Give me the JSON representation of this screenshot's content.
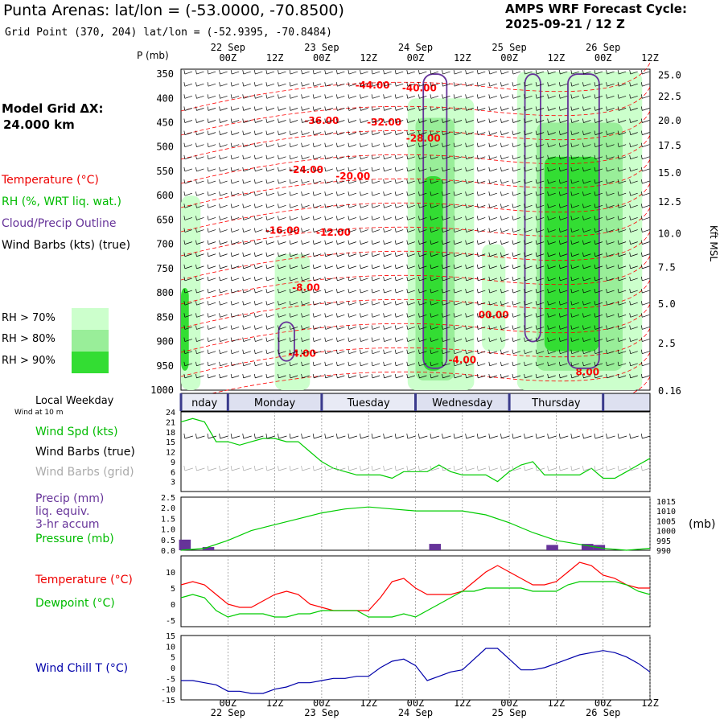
{
  "header": {
    "title": "Punta Arenas:  lat/lon = (-53.0000, -70.8500)",
    "subtitle": "Grid Point (370, 204) lat/lon = (-52.9395, -70.8484)",
    "cycle_line1": "AMPS WRF Forecast Cycle:",
    "cycle_line2": "2025-09-21 / 12  Z",
    "grid_line1": "Model Grid ΔX:",
    "grid_line2": " 24.000 km"
  },
  "legend": {
    "temperature": "Temperature (°C)",
    "rh": "RH (%, WRT liq. wat.)",
    "cloud": "Cloud/Precip Outline",
    "barbs": "Wind Barbs (kts) (true)",
    "rh70": "RH > 70%",
    "rh80": "RH > 80%",
    "rh90": "RH > 90%",
    "p_label": "P (mb)",
    "kft_label": "Kft MSL",
    "weekday_label": "Local Weekday",
    "wind10m_label": "Wind at 10 m",
    "wind_spd": "Wind Spd (kts)",
    "wind_barbs_true": "Wind Barbs (true)",
    "wind_barbs_grid": "Wind Barbs (grid)",
    "precip1": "Precip (mm)",
    "precip2": "liq. equiv.",
    "precip3": "3-hr accum",
    "pressure": "Pressure (mb)",
    "pressure_unit": "(mb)",
    "temp2": "Temperature (°C)",
    "dewpoint": "Dewpoint (°C)",
    "windchill": "Wind Chill T (°C)"
  },
  "colors": {
    "temp": "#ff0000",
    "rh70": "#ccffcc",
    "rh80": "#99ee99",
    "rh90": "#33dd33",
    "cloud": "#663399",
    "wind": "#00cc00",
    "precip": "#663399",
    "windchill": "#0000aa",
    "band_dark": "#3a3a8c",
    "band_light": "#dde0f0"
  },
  "chart_data": {
    "time_top_labels": [
      {
        "t": 12,
        "date": "22 Sep",
        "hour": "00Z"
      },
      {
        "t": 24,
        "date": "",
        "hour": "12Z"
      },
      {
        "t": 36,
        "date": "23 Sep",
        "hour": "00Z"
      },
      {
        "t": 48,
        "date": "",
        "hour": "12Z"
      },
      {
        "t": 60,
        "date": "24 Sep",
        "hour": "00Z"
      },
      {
        "t": 72,
        "date": "",
        "hour": "12Z"
      },
      {
        "t": 84,
        "date": "25 Sep",
        "hour": "00Z"
      },
      {
        "t": 96,
        "date": "",
        "hour": "12Z"
      },
      {
        "t": 108,
        "date": "26 Sep",
        "hour": "00Z"
      },
      {
        "t": 120,
        "date": "",
        "hour": "12Z"
      }
    ],
    "time_range": [
      0,
      120
    ],
    "cross_section": {
      "type": "heatmap",
      "pressure_levels": [
        "350",
        "400",
        "450",
        "500",
        "550",
        "600",
        "650",
        "700",
        "750",
        "800",
        "850",
        "900",
        "950",
        "1000"
      ],
      "pressure_range": [
        340,
        1000
      ],
      "height_labels": [
        {
          "label": "25.0",
          "p": 352
        },
        {
          "label": "22.5",
          "p": 396
        },
        {
          "label": "20.0",
          "p": 446
        },
        {
          "label": "17.5",
          "p": 497
        },
        {
          "label": "15.0",
          "p": 553
        },
        {
          "label": "12.5",
          "p": 613
        },
        {
          "label": "10.0",
          "p": 678
        },
        {
          "label": "7.5",
          "p": 748
        },
        {
          "label": "5.0",
          "p": 823
        },
        {
          "label": "2.5",
          "p": 904
        },
        {
          "label": "0.16",
          "p": 1002
        }
      ],
      "temperature_labels": [
        {
          "label": "-44.00",
          "t": 49,
          "p": 373
        },
        {
          "label": "-40.00",
          "t": 61,
          "p": 379
        },
        {
          "label": "-36.00",
          "t": 36,
          "p": 446
        },
        {
          "label": "-32.00",
          "t": 52,
          "p": 449
        },
        {
          "label": "-28.00",
          "t": 62,
          "p": 482
        },
        {
          "label": "-24.00",
          "t": 32,
          "p": 547
        },
        {
          "label": "-20.00",
          "t": 44,
          "p": 560
        },
        {
          "label": "-16.00",
          "t": 26,
          "p": 672
        },
        {
          "label": "-12.00",
          "t": 39,
          "p": 676
        },
        {
          "label": "-8.00",
          "t": 32,
          "p": 789
        },
        {
          "label": "00.00",
          "t": 80,
          "p": 845
        },
        {
          "label": "-4.00",
          "t": 31,
          "p": 925
        },
        {
          "label": "-4.00",
          "t": 72,
          "p": 938
        },
        {
          "label": "8.00",
          "t": 104,
          "p": 963
        }
      ],
      "rh_regions": [
        {
          "level": "rh70",
          "t": [
            0,
            5
          ],
          "p": [
            600,
            1000
          ]
        },
        {
          "level": "rh70",
          "t": [
            24,
            33
          ],
          "p": [
            720,
            1000
          ]
        },
        {
          "level": "rh70",
          "t": [
            58,
            75
          ],
          "p": [
            400,
            1000
          ]
        },
        {
          "level": "rh70",
          "t": [
            77,
            83
          ],
          "p": [
            700,
            920
          ]
        },
        {
          "level": "rh70",
          "t": [
            86,
            118
          ],
          "p": [
            345,
            1000
          ]
        },
        {
          "level": "rh80",
          "t": [
            60,
            70
          ],
          "p": [
            440,
            980
          ]
        },
        {
          "level": "rh80",
          "t": [
            91,
            113
          ],
          "p": [
            450,
            960
          ]
        },
        {
          "level": "rh90",
          "t": [
            62,
            67
          ],
          "p": [
            560,
            960
          ]
        },
        {
          "level": "rh90",
          "t": [
            93,
            107
          ],
          "p": [
            520,
            920
          ]
        },
        {
          "level": "rh90",
          "t": [
            0,
            2
          ],
          "p": [
            790,
            960
          ]
        }
      ]
    },
    "weekday_bands": [
      {
        "label": "nday",
        "start": 0,
        "end": 12
      },
      {
        "label": "Monday",
        "start": 12,
        "end": 36
      },
      {
        "label": "Tuesday",
        "start": 36,
        "end": 60
      },
      {
        "label": "Wednesday",
        "start": 60,
        "end": 84
      },
      {
        "label": "Thursday",
        "start": 84,
        "end": 108
      },
      {
        "label": "",
        "start": 108,
        "end": 120
      }
    ],
    "wind_speed": {
      "type": "line",
      "y_ticks": [
        "24",
        "21",
        "18",
        "15",
        "12",
        "9",
        "6",
        "3"
      ],
      "ylim": [
        0,
        24
      ],
      "x": [
        0,
        3,
        6,
        9,
        12,
        15,
        18,
        21,
        24,
        27,
        30,
        33,
        36,
        39,
        42,
        45,
        48,
        51,
        54,
        57,
        60,
        63,
        66,
        69,
        72,
        75,
        78,
        81,
        84,
        87,
        90,
        93,
        96,
        99,
        102,
        105,
        108,
        111,
        114,
        117,
        120
      ],
      "values": [
        21,
        22,
        21,
        15,
        15,
        14,
        15,
        16,
        16,
        15,
        15,
        12,
        9,
        7,
        6,
        5,
        5,
        5,
        4,
        6,
        6,
        6,
        8,
        6,
        5,
        5,
        5,
        3,
        6,
        8,
        9,
        5,
        5,
        5,
        5,
        7,
        4,
        4,
        6,
        8,
        10
      ]
    },
    "pressure_precip": {
      "type": "line",
      "precip_ticks": [
        "2.5",
        "2.0",
        "1.5",
        "1.0",
        "0.5",
        "0.0"
      ],
      "pressure_ticks": [
        "1015",
        "1010",
        "1005",
        "1000",
        "995",
        "990"
      ],
      "precip_range": [
        0,
        2.5
      ],
      "pressure_range": [
        990,
        1017
      ],
      "pressure_x": [
        0,
        6,
        12,
        18,
        24,
        30,
        36,
        42,
        48,
        54,
        60,
        66,
        72,
        78,
        84,
        90,
        96,
        102,
        108,
        114,
        120
      ],
      "pressure": [
        990,
        991,
        995,
        1000,
        1003,
        1006,
        1009,
        1011,
        1012,
        1011,
        1010,
        1010,
        1010,
        1008,
        1004,
        999,
        995,
        993,
        991,
        990,
        991
      ],
      "precip_bars": [
        {
          "t": 1,
          "value": 0.5
        },
        {
          "t": 7,
          "value": 0.15
        },
        {
          "t": 65,
          "value": 0.3
        },
        {
          "t": 95,
          "value": 0.25
        },
        {
          "t": 104,
          "value": 0.3
        },
        {
          "t": 107,
          "value": 0.25
        }
      ]
    },
    "temp_dew": {
      "type": "line",
      "y_ticks": [
        "10",
        "5",
        "0",
        "-5"
      ],
      "ylim": [
        -7,
        15
      ],
      "x": [
        0,
        3,
        6,
        9,
        12,
        15,
        18,
        21,
        24,
        27,
        30,
        33,
        36,
        39,
        42,
        45,
        48,
        51,
        54,
        57,
        60,
        63,
        66,
        69,
        72,
        75,
        78,
        81,
        84,
        87,
        90,
        93,
        96,
        99,
        102,
        105,
        108,
        111,
        114,
        117,
        120
      ],
      "temperature": [
        6,
        7,
        6,
        3,
        0,
        -1,
        -1,
        1,
        3,
        4,
        3,
        0,
        -1,
        -2,
        -2,
        -2,
        -2,
        2,
        7,
        8,
        5,
        3,
        3,
        3,
        4,
        7,
        10,
        12,
        10,
        8,
        6,
        6,
        7,
        10,
        13,
        12,
        9,
        8,
        6,
        5,
        5
      ],
      "dewpoint": [
        2,
        3,
        2,
        -2,
        -4,
        -3,
        -3,
        -3,
        -4,
        -4,
        -3,
        -3,
        -2,
        -2,
        -2,
        -2,
        -4,
        -4,
        -4,
        -3,
        -4,
        -2,
        0,
        2,
        4,
        4,
        5,
        5,
        5,
        5,
        4,
        4,
        4,
        6,
        7,
        7,
        7,
        7,
        6,
        4,
        3
      ]
    },
    "wind_chill": {
      "type": "line",
      "y_ticks": [
        "15",
        "10",
        "5",
        "0",
        "-5",
        "-10",
        "-15"
      ],
      "ylim": [
        -15,
        15
      ],
      "x": [
        0,
        3,
        6,
        9,
        12,
        15,
        18,
        21,
        24,
        27,
        30,
        33,
        36,
        39,
        42,
        45,
        48,
        51,
        54,
        57,
        60,
        63,
        66,
        69,
        72,
        75,
        78,
        81,
        84,
        87,
        90,
        93,
        96,
        99,
        102,
        105,
        108,
        111,
        114,
        117,
        120
      ],
      "values": [
        -6,
        -6,
        -7,
        -8,
        -11,
        -11,
        -12,
        -12,
        -10,
        -9,
        -7,
        -7,
        -6,
        -5,
        -5,
        -4,
        -4,
        0,
        3,
        4,
        1,
        -6,
        -4,
        -2,
        -1,
        4,
        9,
        9,
        4,
        -1,
        -1,
        0,
        2,
        4,
        6,
        7,
        8,
        7,
        5,
        2,
        -2
      ]
    }
  }
}
